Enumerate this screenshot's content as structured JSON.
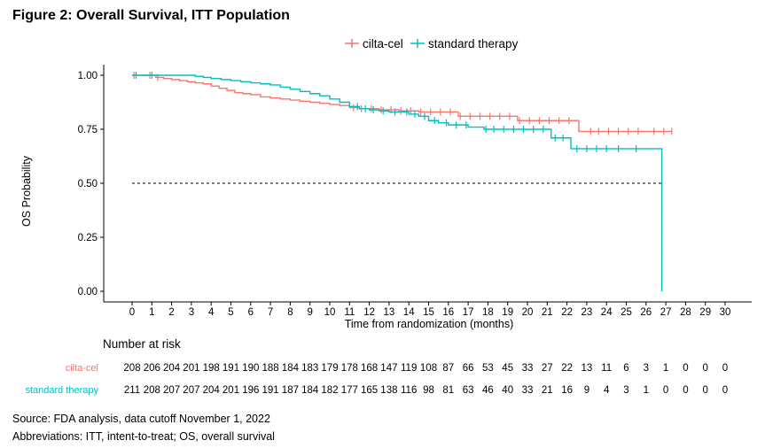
{
  "figure_title": "Figure 2: Overall Survival, ITT Population",
  "legend_items": [
    "cilta-cel",
    "standard therapy"
  ],
  "risk_table": {
    "title": "Number at risk",
    "rows": [
      {
        "label": "cilta-cel",
        "color": "#F8766D",
        "values": [
          "208",
          "206",
          "204",
          "201",
          "198",
          "191",
          "190",
          "188",
          "184",
          "183",
          "179",
          "178",
          "168",
          "147",
          "119",
          "108",
          "87",
          "66",
          "53",
          "45",
          "33",
          "27",
          "22",
          "13",
          "11",
          "6",
          "3",
          "1",
          "0",
          "0",
          "0"
        ]
      },
      {
        "label": "standard therapy",
        "color": "#00BFC4",
        "values": [
          "211",
          "208",
          "207",
          "207",
          "204",
          "201",
          "196",
          "191",
          "187",
          "184",
          "182",
          "177",
          "165",
          "138",
          "116",
          "98",
          "81",
          "63",
          "46",
          "40",
          "33",
          "21",
          "16",
          "9",
          "4",
          "3",
          "1",
          "0",
          "0",
          "0",
          "0"
        ]
      }
    ]
  },
  "footnotes": [
    "Source: FDA analysis, data cutoff November 1, 2022",
    "Abbreviations: ITT, intent-to-treat; OS, overall survival"
  ],
  "chart_data": {
    "type": "line",
    "subtype": "kaplan-meier step",
    "xlabel": "Time from randomization (months)",
    "ylabel": "OS Probability",
    "xlim": [
      0,
      30
    ],
    "ylim": [
      0,
      1
    ],
    "x_ticks": [
      "0",
      "1",
      "2",
      "3",
      "4",
      "5",
      "6",
      "7",
      "8",
      "9",
      "10",
      "11",
      "12",
      "13",
      "14",
      "15",
      "16",
      "17",
      "18",
      "19",
      "20",
      "21",
      "22",
      "23",
      "24",
      "25",
      "26",
      "27",
      "28",
      "29",
      "30"
    ],
    "y_ticks": [
      "0.00",
      "0.25",
      "0.50",
      "0.75",
      "1.00"
    ],
    "reference_line": {
      "y": 0.5,
      "style": "dashed"
    },
    "series": [
      {
        "name": "cilta-cel",
        "color": "#F8766D",
        "steps": [
          [
            0,
            1.0
          ],
          [
            1.2,
            0.99
          ],
          [
            1.6,
            0.985
          ],
          [
            2.0,
            0.98
          ],
          [
            2.4,
            0.975
          ],
          [
            2.8,
            0.97
          ],
          [
            3.2,
            0.965
          ],
          [
            3.6,
            0.96
          ],
          [
            4.0,
            0.95
          ],
          [
            4.4,
            0.94
          ],
          [
            4.8,
            0.93
          ],
          [
            5.2,
            0.92
          ],
          [
            5.6,
            0.915
          ],
          [
            6.0,
            0.91
          ],
          [
            6.5,
            0.9
          ],
          [
            7.0,
            0.895
          ],
          [
            7.5,
            0.89
          ],
          [
            8.0,
            0.885
          ],
          [
            8.5,
            0.88
          ],
          [
            9.0,
            0.875
          ],
          [
            9.5,
            0.87
          ],
          [
            10.0,
            0.865
          ],
          [
            10.5,
            0.86
          ],
          [
            11.0,
            0.85
          ],
          [
            11.5,
            0.845
          ],
          [
            12.5,
            0.84
          ],
          [
            13.5,
            0.835
          ],
          [
            14.5,
            0.83
          ],
          [
            16.5,
            0.81
          ],
          [
            19.5,
            0.79
          ],
          [
            22.6,
            0.74
          ],
          [
            27.3,
            0.74
          ]
        ],
        "censor_x": [
          0.1,
          0.9,
          1.3,
          11.2,
          11.6,
          12.1,
          12.6,
          13.1,
          13.6,
          14.1,
          14.6,
          15.1,
          15.6,
          16.1,
          16.6,
          17.1,
          17.6,
          18.1,
          18.6,
          19.1,
          19.6,
          20.1,
          20.6,
          21.1,
          21.6,
          22.1,
          23.2,
          23.6,
          24.1,
          24.6,
          25.1,
          25.6,
          26.4,
          26.9,
          27.3
        ]
      },
      {
        "name": "standard therapy",
        "color": "#00BFC4",
        "steps": [
          [
            0,
            1.0
          ],
          [
            3.2,
            0.995
          ],
          [
            3.6,
            0.99
          ],
          [
            4.0,
            0.985
          ],
          [
            4.5,
            0.98
          ],
          [
            5.0,
            0.975
          ],
          [
            5.5,
            0.97
          ],
          [
            6.0,
            0.965
          ],
          [
            6.5,
            0.96
          ],
          [
            7.0,
            0.955
          ],
          [
            7.5,
            0.945
          ],
          [
            8.0,
            0.935
          ],
          [
            8.5,
            0.925
          ],
          [
            9.0,
            0.915
          ],
          [
            9.5,
            0.905
          ],
          [
            10.0,
            0.89
          ],
          [
            10.5,
            0.875
          ],
          [
            11.0,
            0.855
          ],
          [
            11.5,
            0.845
          ],
          [
            12.0,
            0.84
          ],
          [
            12.5,
            0.835
          ],
          [
            13.0,
            0.83
          ],
          [
            14.0,
            0.82
          ],
          [
            14.5,
            0.81
          ],
          [
            15.0,
            0.79
          ],
          [
            15.5,
            0.78
          ],
          [
            16.0,
            0.77
          ],
          [
            17.0,
            0.76
          ],
          [
            17.8,
            0.75
          ],
          [
            21.2,
            0.71
          ],
          [
            22.2,
            0.66
          ],
          [
            26.8,
            0.0
          ]
        ],
        "censor_x": [
          0.2,
          1.0,
          11.4,
          11.8,
          12.2,
          12.7,
          13.3,
          13.9,
          14.3,
          14.8,
          15.3,
          15.9,
          16.4,
          16.9,
          17.9,
          18.3,
          18.8,
          19.3,
          19.8,
          20.3,
          20.8,
          21.4,
          21.8,
          22.5,
          23.0,
          23.5,
          24.0,
          24.6,
          25.5
        ]
      }
    ]
  }
}
